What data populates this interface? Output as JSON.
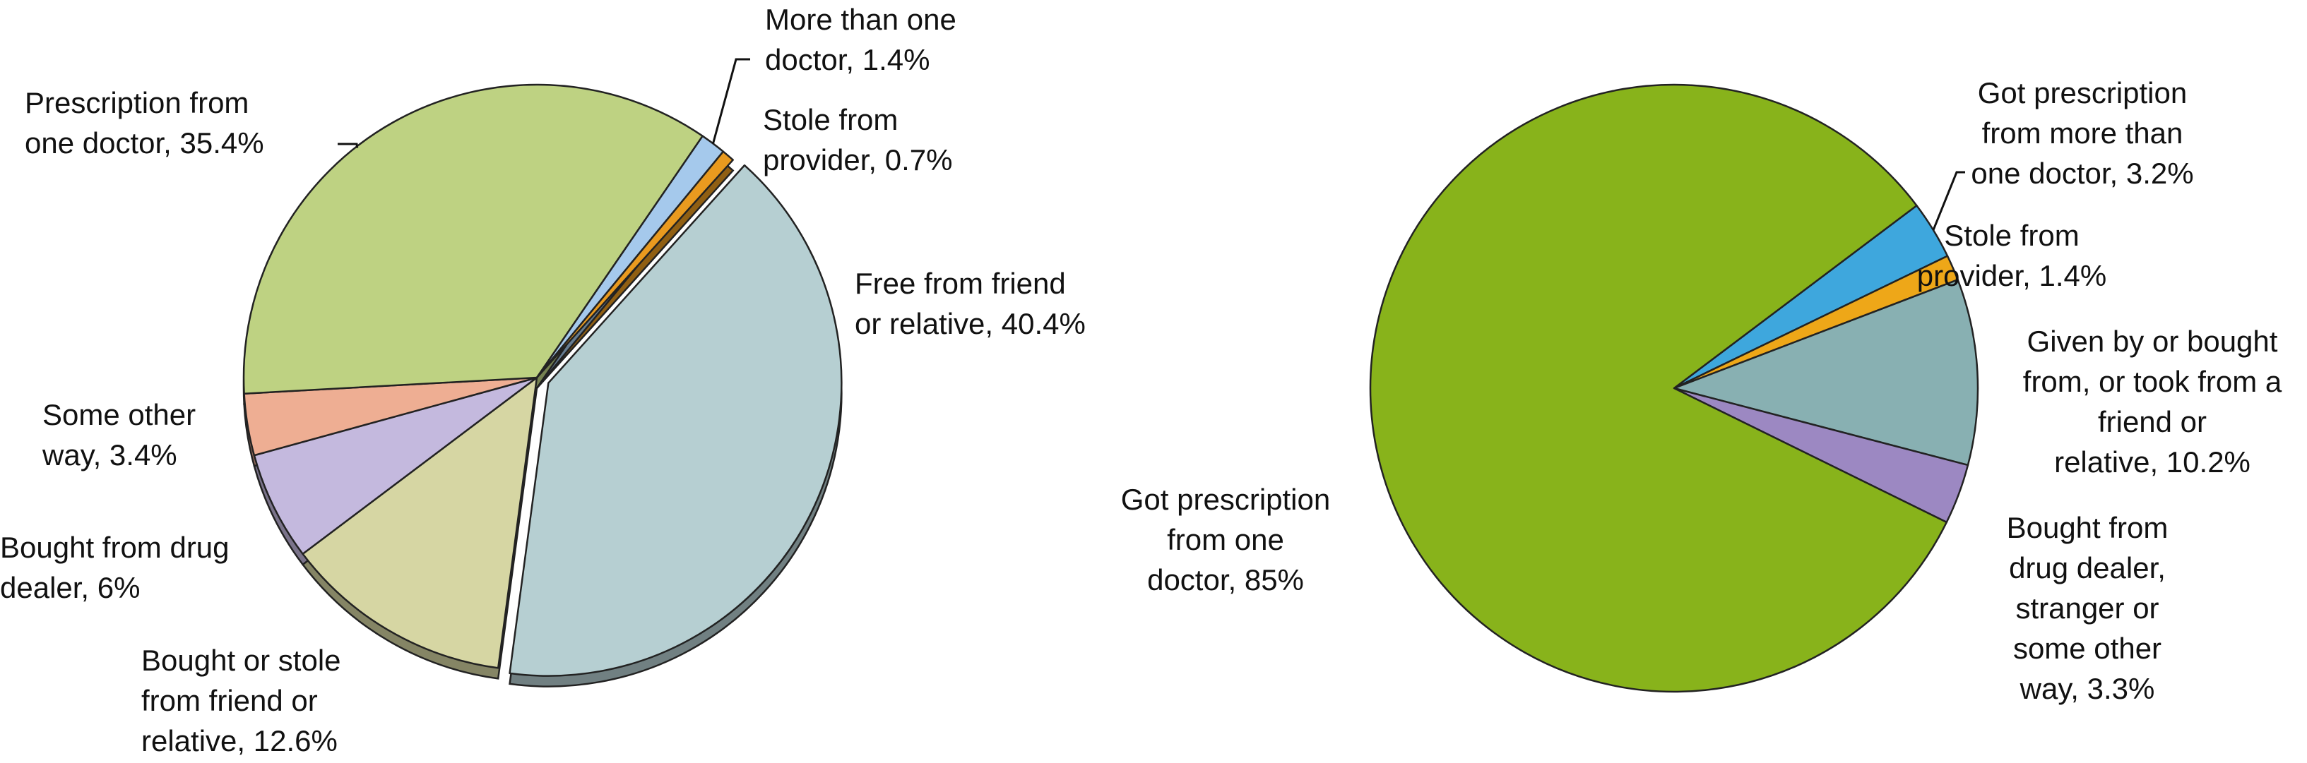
{
  "chart_data": [
    {
      "type": "pie",
      "title": "",
      "series": [
        {
          "label_lines": [
            "Free from friend",
            "or relative, 40.4%"
          ],
          "value": 40.4,
          "color": "#b6cfd2",
          "exploded": true
        },
        {
          "label_lines": [
            "Bought or stole",
            "from friend or",
            "relative, 12.6%"
          ],
          "value": 12.6,
          "color": "#d6d6a3"
        },
        {
          "label_lines": [
            "Bought from drug",
            "dealer, 6%"
          ],
          "value": 6.0,
          "color": "#c4b9de"
        },
        {
          "label_lines": [
            "Some other",
            "way, 3.4%"
          ],
          "value": 3.4,
          "color": "#eeae93"
        },
        {
          "label_lines": [
            "Prescription from",
            "one doctor, 35.4%"
          ],
          "value": 35.4,
          "color": "#bed282"
        },
        {
          "label_lines": [
            "More than one",
            "doctor, 1.4%"
          ],
          "value": 1.4,
          "color": "#a5c9ec"
        },
        {
          "label_lines": [
            "Stole from",
            "provider, 0.7%"
          ],
          "value": 0.7,
          "color": "#e99a1f"
        }
      ]
    },
    {
      "type": "pie",
      "title": "",
      "series": [
        {
          "label_lines": [
            "Got prescription",
            "from more than",
            "one doctor, 3.2%"
          ],
          "value": 3.2,
          "color": "#3ea7dd"
        },
        {
          "label_lines": [
            "Stole from",
            "provider, 1.4%"
          ],
          "value": 1.4,
          "color": "#eea718"
        },
        {
          "label_lines": [
            "Given by or bought",
            "from, or took from a",
            "friend or",
            "relative, 10.2%"
          ],
          "value": 10.2,
          "color": "#88b0b2"
        },
        {
          "label_lines": [
            "Bought from",
            "drug dealer,",
            "stranger or",
            "some other",
            "way, 3.3%"
          ],
          "value": 3.3,
          "color": "#9c88c2"
        },
        {
          "label_lines": [
            "Got prescription",
            "from one",
            "doctor, 85%"
          ],
          "value": 85.0,
          "color": "#88b31b"
        }
      ]
    }
  ]
}
